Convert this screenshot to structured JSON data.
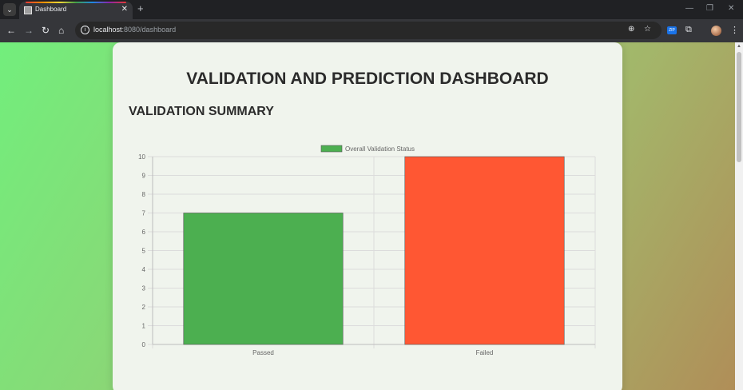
{
  "browser": {
    "tab_title": "Dashboard",
    "tab_close": "✕",
    "new_tab": "+",
    "url_host": "localhost",
    "url_path": ":8080/dashboard",
    "window_controls": [
      "—",
      "❐",
      "✕"
    ],
    "extension_badge": "ZIP"
  },
  "page": {
    "title": "VALIDATION AND PREDICTION DASHBOARD",
    "section_title": "VALIDATION SUMMARY"
  },
  "colors": {
    "passed": "#4caf50",
    "failed": "#ff5733"
  },
  "chart_data": {
    "type": "bar",
    "categories": [
      "Passed",
      "Failed"
    ],
    "series": [
      {
        "name": "Overall Validation Status",
        "values": [
          7,
          10
        ]
      }
    ],
    "ylim": [
      0,
      10
    ],
    "yticks": [
      0,
      1,
      2,
      3,
      4,
      5,
      6,
      7,
      8,
      9,
      10
    ],
    "grid": true,
    "legend": "top-center"
  }
}
